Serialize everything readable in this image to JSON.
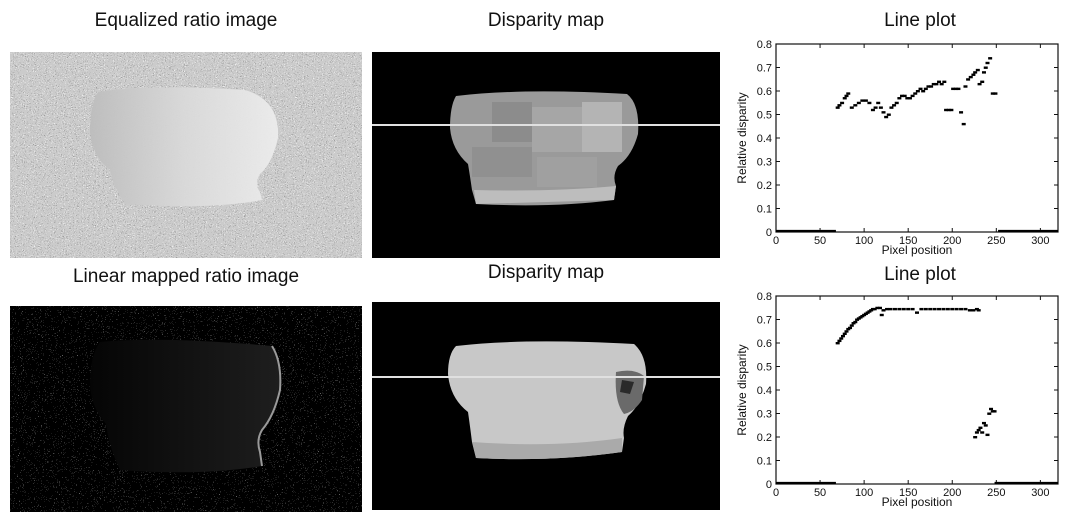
{
  "row1": {
    "ratio_title": "Equalized ratio image",
    "disparity_title": "Disparity map",
    "plot_title": "Line plot"
  },
  "row2": {
    "ratio_title": "Linear mapped ratio image",
    "disparity_title": "Disparity map",
    "plot_title": "Line plot"
  },
  "colors": {
    "background": "#ffffff",
    "image_black": "#000000",
    "scanline": "#e0e0e0",
    "points": "#000000"
  },
  "chart_data": [
    {
      "type": "scatter",
      "title": "Line plot",
      "xlabel": "Pixel position",
      "ylabel": "Relative disparity",
      "xlim": [
        0,
        320
      ],
      "ylim": [
        0,
        0.8
      ],
      "xticks": [
        0,
        50,
        100,
        150,
        200,
        250,
        300
      ],
      "yticks": [
        0,
        0.1,
        0.2,
        0.3,
        0.4,
        0.5,
        0.6,
        0.7,
        0.8
      ],
      "yticklabels": [
        "0",
        "0.1",
        "0.2",
        "0.3",
        "0.4",
        "0.5",
        "0.6",
        "0.7",
        "0.8"
      ],
      "grid": false,
      "baseline_zero_ranges": [
        [
          0,
          68
        ],
        [
          252,
          320
        ]
      ],
      "points": [
        [
          70,
          0.53
        ],
        [
          72,
          0.54
        ],
        [
          75,
          0.55
        ],
        [
          78,
          0.57
        ],
        [
          80,
          0.58
        ],
        [
          82,
          0.59
        ],
        [
          86,
          0.53
        ],
        [
          90,
          0.54
        ],
        [
          94,
          0.55
        ],
        [
          98,
          0.56
        ],
        [
          102,
          0.56
        ],
        [
          106,
          0.55
        ],
        [
          110,
          0.52
        ],
        [
          113,
          0.53
        ],
        [
          116,
          0.55
        ],
        [
          119,
          0.53
        ],
        [
          122,
          0.51
        ],
        [
          125,
          0.49
        ],
        [
          128,
          0.5
        ],
        [
          131,
          0.53
        ],
        [
          134,
          0.54
        ],
        [
          137,
          0.55
        ],
        [
          140,
          0.57
        ],
        [
          143,
          0.58
        ],
        [
          146,
          0.58
        ],
        [
          149,
          0.57
        ],
        [
          152,
          0.57
        ],
        [
          155,
          0.58
        ],
        [
          158,
          0.59
        ],
        [
          161,
          0.6
        ],
        [
          164,
          0.61
        ],
        [
          167,
          0.6
        ],
        [
          170,
          0.61
        ],
        [
          173,
          0.62
        ],
        [
          176,
          0.62
        ],
        [
          179,
          0.63
        ],
        [
          182,
          0.63
        ],
        [
          185,
          0.64
        ],
        [
          188,
          0.63
        ],
        [
          191,
          0.64
        ],
        [
          193,
          0.52
        ],
        [
          196,
          0.52
        ],
        [
          199,
          0.52
        ],
        [
          201,
          0.61
        ],
        [
          204,
          0.61
        ],
        [
          207,
          0.61
        ],
        [
          210,
          0.51
        ],
        [
          213,
          0.46
        ],
        [
          215,
          0.62
        ],
        [
          218,
          0.65
        ],
        [
          221,
          0.66
        ],
        [
          224,
          0.67
        ],
        [
          226,
          0.68
        ],
        [
          229,
          0.69
        ],
        [
          231,
          0.63
        ],
        [
          234,
          0.64
        ],
        [
          236,
          0.68
        ],
        [
          238,
          0.7
        ],
        [
          240,
          0.72
        ],
        [
          243,
          0.74
        ],
        [
          246,
          0.59
        ],
        [
          249,
          0.59
        ]
      ]
    },
    {
      "type": "scatter",
      "title": "Line plot",
      "xlabel": "Pixel position",
      "ylabel": "Relative disparity",
      "xlim": [
        0,
        320
      ],
      "ylim": [
        0,
        0.8
      ],
      "xticks": [
        0,
        50,
        100,
        150,
        200,
        250,
        300
      ],
      "yticks": [
        0,
        0.1,
        0.2,
        0.3,
        0.4,
        0.5,
        0.6,
        0.7,
        0.8
      ],
      "yticklabels": [
        "0",
        "0.1",
        "0.2",
        "0.3",
        "0.4",
        "0.5",
        "0.6",
        "0.7",
        "0.8"
      ],
      "grid": false,
      "baseline_zero_ranges": [
        [
          0,
          68
        ],
        [
          248,
          320
        ]
      ],
      "points": [
        [
          70,
          0.6
        ],
        [
          72,
          0.61
        ],
        [
          74,
          0.62
        ],
        [
          76,
          0.63
        ],
        [
          78,
          0.64
        ],
        [
          80,
          0.65
        ],
        [
          82,
          0.66
        ],
        [
          84,
          0.665
        ],
        [
          86,
          0.675
        ],
        [
          88,
          0.685
        ],
        [
          90,
          0.69
        ],
        [
          92,
          0.7
        ],
        [
          94,
          0.705
        ],
        [
          96,
          0.71
        ],
        [
          98,
          0.715
        ],
        [
          100,
          0.72
        ],
        [
          102,
          0.725
        ],
        [
          104,
          0.73
        ],
        [
          106,
          0.735
        ],
        [
          108,
          0.74
        ],
        [
          110,
          0.745
        ],
        [
          112,
          0.745
        ],
        [
          115,
          0.75
        ],
        [
          118,
          0.75
        ],
        [
          120,
          0.72
        ],
        [
          122,
          0.74
        ],
        [
          126,
          0.745
        ],
        [
          130,
          0.745
        ],
        [
          135,
          0.745
        ],
        [
          140,
          0.745
        ],
        [
          145,
          0.745
        ],
        [
          150,
          0.745
        ],
        [
          155,
          0.745
        ],
        [
          160,
          0.73
        ],
        [
          165,
          0.745
        ],
        [
          170,
          0.745
        ],
        [
          175,
          0.745
        ],
        [
          180,
          0.745
        ],
        [
          185,
          0.745
        ],
        [
          190,
          0.745
        ],
        [
          195,
          0.745
        ],
        [
          200,
          0.745
        ],
        [
          205,
          0.745
        ],
        [
          210,
          0.745
        ],
        [
          215,
          0.745
        ],
        [
          220,
          0.74
        ],
        [
          224,
          0.74
        ],
        [
          228,
          0.745
        ],
        [
          230,
          0.74
        ],
        [
          226,
          0.2
        ],
        [
          228,
          0.22
        ],
        [
          230,
          0.23
        ],
        [
          232,
          0.24
        ],
        [
          234,
          0.22
        ],
        [
          236,
          0.26
        ],
        [
          238,
          0.25
        ],
        [
          240,
          0.21
        ],
        [
          242,
          0.3
        ],
        [
          244,
          0.32
        ],
        [
          246,
          0.31
        ],
        [
          248,
          0.31
        ]
      ]
    }
  ]
}
